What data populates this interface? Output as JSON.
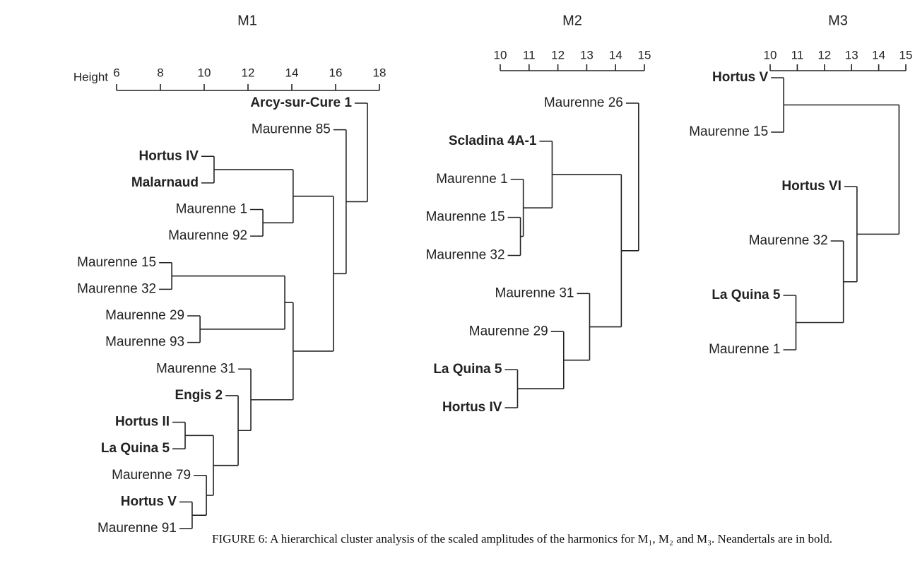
{
  "chart_data": [
    {
      "type": "dendrogram",
      "title": "M1",
      "axis_label": "Height",
      "xlim": [
        6,
        18
      ],
      "xticks": [
        6,
        8,
        10,
        12,
        14,
        16,
        18
      ],
      "tree": {
        "height": 17.45,
        "children": [
          {
            "label": "Arcy-sur-Cure 1",
            "bold": true
          },
          {
            "height": 16.48,
            "children": [
              {
                "label": "Maurenne 85",
                "bold": false
              },
              {
                "height": 15.9,
                "children": [
                  {
                    "height": 14.06,
                    "children": [
                      {
                        "height": 10.45,
                        "children": [
                          {
                            "label": "Hortus IV",
                            "bold": true
                          },
                          {
                            "label": "Malarnaud",
                            "bold": true
                          }
                        ]
                      },
                      {
                        "height": 12.68,
                        "children": [
                          {
                            "label": "Maurenne 1",
                            "bold": false
                          },
                          {
                            "label": "Maurenne 92",
                            "bold": false
                          }
                        ]
                      }
                    ]
                  },
                  {
                    "height": 14.06,
                    "children": [
                      {
                        "height": 13.68,
                        "children": [
                          {
                            "height": 8.52,
                            "children": [
                              {
                                "label": "Maurenne 15",
                                "bold": false
                              },
                              {
                                "label": "Maurenne 32",
                                "bold": false
                              }
                            ]
                          },
                          {
                            "height": 9.81,
                            "children": [
                              {
                                "label": "Maurenne 29",
                                "bold": false
                              },
                              {
                                "label": "Maurenne 93",
                                "bold": false
                              }
                            ]
                          }
                        ]
                      },
                      {
                        "height": 12.13,
                        "children": [
                          {
                            "label": "Maurenne 31",
                            "bold": false
                          },
                          {
                            "height": 11.55,
                            "children": [
                              {
                                "label": "Engis 2",
                                "bold": true
                              },
                              {
                                "height": 10.42,
                                "children": [
                                  {
                                    "height": 9.13,
                                    "children": [
                                      {
                                        "label": "Hortus II",
                                        "bold": true
                                      },
                                      {
                                        "label": "La Quina 5",
                                        "bold": true
                                      }
                                    ]
                                  },
                                  {
                                    "height": 10.1,
                                    "children": [
                                      {
                                        "label": "Maurenne 79",
                                        "bold": false
                                      },
                                      {
                                        "height": 9.45,
                                        "children": [
                                          {
                                            "label": "Hortus V",
                                            "bold": true
                                          },
                                          {
                                            "label": "Maurenne 91",
                                            "bold": false
                                          }
                                        ]
                                      }
                                    ]
                                  }
                                ]
                              }
                            ]
                          }
                        ]
                      }
                    ]
                  }
                ]
              }
            ]
          }
        ]
      }
    },
    {
      "type": "dendrogram",
      "title": "M2",
      "xlim": [
        10,
        15
      ],
      "xticks": [
        10,
        11,
        12,
        13,
        14,
        15
      ],
      "tree": {
        "height": 14.8,
        "children": [
          {
            "label": "Maurenne 26",
            "bold": false
          },
          {
            "height": 14.2,
            "children": [
              {
                "height": 11.8,
                "children": [
                  {
                    "label": "Scladina 4A-1",
                    "bold": true
                  },
                  {
                    "height": 10.8,
                    "children": [
                      {
                        "label": "Maurenne 1",
                        "bold": false
                      },
                      {
                        "height": 10.7,
                        "children": [
                          {
                            "label": "Maurenne 15",
                            "bold": false
                          },
                          {
                            "label": "Maurenne 32",
                            "bold": false
                          }
                        ]
                      }
                    ]
                  }
                ]
              },
              {
                "height": 13.1,
                "children": [
                  {
                    "label": "Maurenne 31",
                    "bold": false
                  },
                  {
                    "height": 12.2,
                    "children": [
                      {
                        "label": "Maurenne 29",
                        "bold": false
                      },
                      {
                        "height": 10.6,
                        "children": [
                          {
                            "label": "La Quina 5",
                            "bold": true
                          },
                          {
                            "label": "Hortus IV",
                            "bold": true
                          }
                        ]
                      }
                    ]
                  }
                ]
              }
            ]
          }
        ]
      }
    },
    {
      "type": "dendrogram",
      "title": "M3",
      "xlim": [
        10,
        15
      ],
      "xticks": [
        10,
        11,
        12,
        13,
        14,
        15
      ],
      "tree": {
        "height": 14.75,
        "children": [
          {
            "height": 10.5,
            "children": [
              {
                "label": "Hortus V",
                "bold": true
              },
              {
                "label": "Maurenne 15",
                "bold": false
              }
            ]
          },
          {
            "height": 13.2,
            "children": [
              {
                "label": "Hortus VI",
                "bold": true
              },
              {
                "height": 12.7,
                "children": [
                  {
                    "label": "Maurenne 32",
                    "bold": false
                  },
                  {
                    "height": 10.95,
                    "children": [
                      {
                        "label": "La Quina 5",
                        "bold": true
                      },
                      {
                        "label": "Maurenne 1",
                        "bold": false
                      }
                    ]
                  }
                ]
              }
            ]
          }
        ]
      }
    }
  ],
  "caption": "FIGURE 6: A hierarchical cluster analysis of the scaled amplitudes of the harmonics for M₁, M₂ and M₃. Neandertals are in bold."
}
